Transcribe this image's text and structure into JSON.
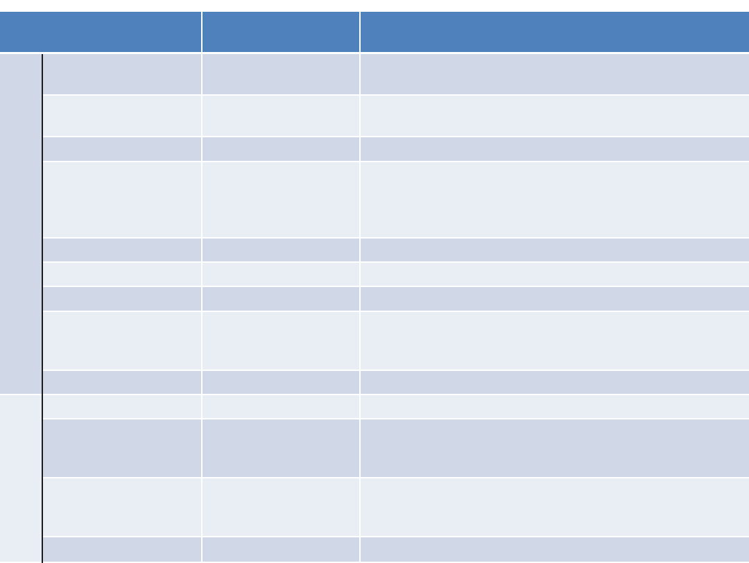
{
  "colors": {
    "header": "#4F81BD",
    "band_dark": "#D0D8E8",
    "band_light": "#E9EDF4",
    "divider": "#1A1A1A"
  },
  "table": {
    "header": [
      "",
      "",
      ""
    ],
    "groups": [
      {
        "label": "",
        "rows": [
          [
            "",
            "",
            ""
          ],
          [
            "",
            "",
            ""
          ],
          [
            "",
            "",
            ""
          ],
          [
            "",
            "",
            ""
          ],
          [
            "",
            "",
            ""
          ],
          [
            "",
            "",
            ""
          ],
          [
            "",
            "",
            ""
          ],
          [
            "",
            "",
            ""
          ],
          [
            "",
            "",
            ""
          ]
        ]
      },
      {
        "label": "",
        "rows": [
          [
            "",
            "",
            ""
          ],
          [
            "",
            "",
            ""
          ],
          [
            "",
            "",
            ""
          ],
          [
            "",
            "",
            ""
          ]
        ]
      }
    ]
  }
}
